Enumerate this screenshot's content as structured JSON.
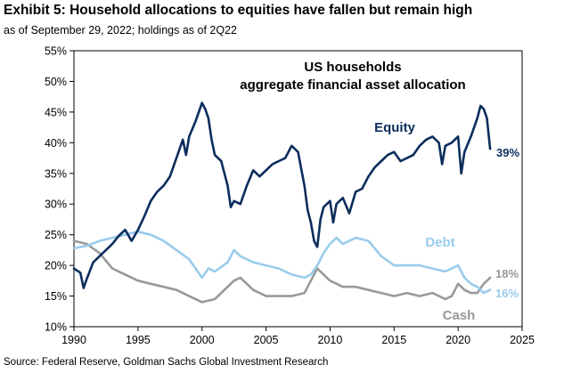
{
  "header": {
    "title": "Exhibit 5: Household allocations to equities have fallen but remain high",
    "subtitle": "as of September 29, 2022; holdings as of 2Q22"
  },
  "footer": {
    "source": "Source: Federal Reserve, Goldman Sachs Global Investment Research"
  },
  "chart_data": {
    "type": "line",
    "title": "US households aggregate financial asset allocation",
    "title_lines": [
      "US households",
      "aggregate financial asset allocation"
    ],
    "xlabel": "",
    "ylabel": "",
    "xlim": [
      1990,
      2025
    ],
    "ylim": [
      10,
      55
    ],
    "x_ticks": [
      1990,
      1995,
      2000,
      2005,
      2010,
      2015,
      2020,
      2025
    ],
    "x_tick_labels": [
      "1990",
      "1995",
      "2000",
      "2005",
      "2010",
      "2015",
      "2020",
      "2025"
    ],
    "y_ticks": [
      10,
      15,
      20,
      25,
      30,
      35,
      40,
      45,
      50,
      55
    ],
    "y_tick_labels": [
      "10%",
      "15%",
      "20%",
      "25%",
      "30%",
      "35%",
      "40%",
      "45%",
      "50%",
      "55%"
    ],
    "grid": false,
    "series": [
      {
        "name": "Equity",
        "color": "#0b2d5c",
        "end_label": "39%",
        "x": [
          1990,
          1990.5,
          1990.75,
          1991,
          1991.5,
          1992,
          1992.5,
          1993,
          1993.5,
          1994,
          1994.5,
          1995,
          1995.5,
          1996,
          1996.5,
          1997,
          1997.5,
          1998,
          1998.5,
          1998.75,
          1999,
          1999.5,
          1999.75,
          2000,
          2000.25,
          2000.5,
          2000.75,
          2001,
          2001.5,
          2002,
          2002.25,
          2002.5,
          2003,
          2003.5,
          2004,
          2004.5,
          2005,
          2005.5,
          2006,
          2006.5,
          2007,
          2007.5,
          2008,
          2008.25,
          2008.5,
          2008.75,
          2009,
          2009.25,
          2009.5,
          2010,
          2010.25,
          2010.5,
          2011,
          2011.5,
          2012,
          2012.5,
          2013,
          2013.5,
          2014,
          2014.5,
          2015,
          2015.5,
          2016,
          2016.5,
          2017,
          2017.5,
          2018,
          2018.5,
          2018.75,
          2019,
          2019.5,
          2020,
          2020.25,
          2020.5,
          2021,
          2021.5,
          2021.75,
          2022,
          2022.25,
          2022.5
        ],
        "values": [
          19.5,
          18.8,
          16.3,
          17.8,
          20.5,
          21.5,
          22.5,
          23.5,
          24.8,
          25.8,
          24.0,
          25.8,
          28.0,
          30.5,
          32.0,
          33.0,
          34.5,
          37.5,
          40.5,
          38.0,
          41.0,
          43.5,
          45.0,
          46.5,
          45.5,
          44.0,
          40.5,
          38.0,
          37.0,
          33.0,
          29.5,
          30.5,
          30.0,
          33.0,
          35.5,
          34.5,
          35.5,
          36.5,
          37.0,
          37.5,
          39.5,
          38.5,
          33.0,
          29.0,
          27.0,
          24.0,
          23.0,
          27.5,
          29.5,
          30.5,
          27.0,
          30.0,
          31.0,
          28.5,
          32.0,
          32.5,
          34.5,
          36.0,
          37.0,
          38.0,
          38.5,
          37.0,
          37.5,
          38.0,
          39.5,
          40.5,
          41.0,
          40.0,
          36.5,
          39.5,
          40.0,
          41.0,
          35.0,
          38.5,
          41.0,
          44.0,
          46.0,
          45.5,
          44.0,
          39.0
        ]
      },
      {
        "name": "Debt",
        "color": "#99ccec",
        "end_label": "16%",
        "x": [
          1990,
          1991,
          1992,
          1993,
          1994,
          1995,
          1996,
          1997,
          1998,
          1999,
          2000,
          2000.5,
          2001,
          2002,
          2002.5,
          2003,
          2004,
          2005,
          2006,
          2007,
          2008,
          2008.5,
          2009,
          2009.5,
          2010,
          2010.5,
          2011,
          2012,
          2013,
          2014,
          2015,
          2016,
          2017,
          2018,
          2019,
          2019.5,
          2020,
          2020.5,
          2021,
          2021.5,
          2022,
          2022.5
        ],
        "values": [
          22.8,
          23.2,
          24.0,
          24.5,
          25.0,
          25.5,
          25.0,
          24.0,
          22.5,
          21.0,
          18.0,
          19.5,
          19.0,
          20.5,
          22.5,
          21.5,
          20.5,
          20.0,
          19.5,
          18.5,
          18.0,
          18.5,
          20.0,
          22.0,
          23.5,
          24.5,
          23.5,
          24.5,
          24.0,
          21.5,
          20.0,
          20.0,
          20.0,
          19.5,
          19.0,
          19.5,
          20.0,
          18.0,
          17.0,
          16.5,
          15.5,
          16.0
        ]
      },
      {
        "name": "Cash",
        "color": "#999999",
        "end_label": "18%",
        "x": [
          1990,
          1991,
          1992,
          1993,
          1994,
          1995,
          1996,
          1997,
          1998,
          1999,
          2000,
          2001,
          2002,
          2002.5,
          2003,
          2004,
          2005,
          2006,
          2007,
          2008,
          2008.5,
          2009,
          2009.5,
          2010,
          2011,
          2012,
          2013,
          2014,
          2015,
          2016,
          2017,
          2018,
          2019,
          2019.5,
          2020,
          2020.5,
          2021,
          2021.5,
          2022,
          2022.5
        ],
        "values": [
          24.0,
          23.5,
          22.0,
          19.5,
          18.5,
          17.5,
          17.0,
          16.5,
          16.0,
          15.0,
          14.0,
          14.5,
          16.5,
          17.5,
          18.0,
          16.0,
          15.0,
          15.0,
          15.0,
          15.5,
          17.5,
          19.5,
          18.5,
          17.5,
          16.5,
          16.5,
          16.0,
          15.5,
          15.0,
          15.5,
          15.0,
          15.5,
          14.5,
          15.0,
          17.0,
          16.0,
          15.5,
          15.5,
          17.0,
          18.0
        ]
      }
    ]
  }
}
